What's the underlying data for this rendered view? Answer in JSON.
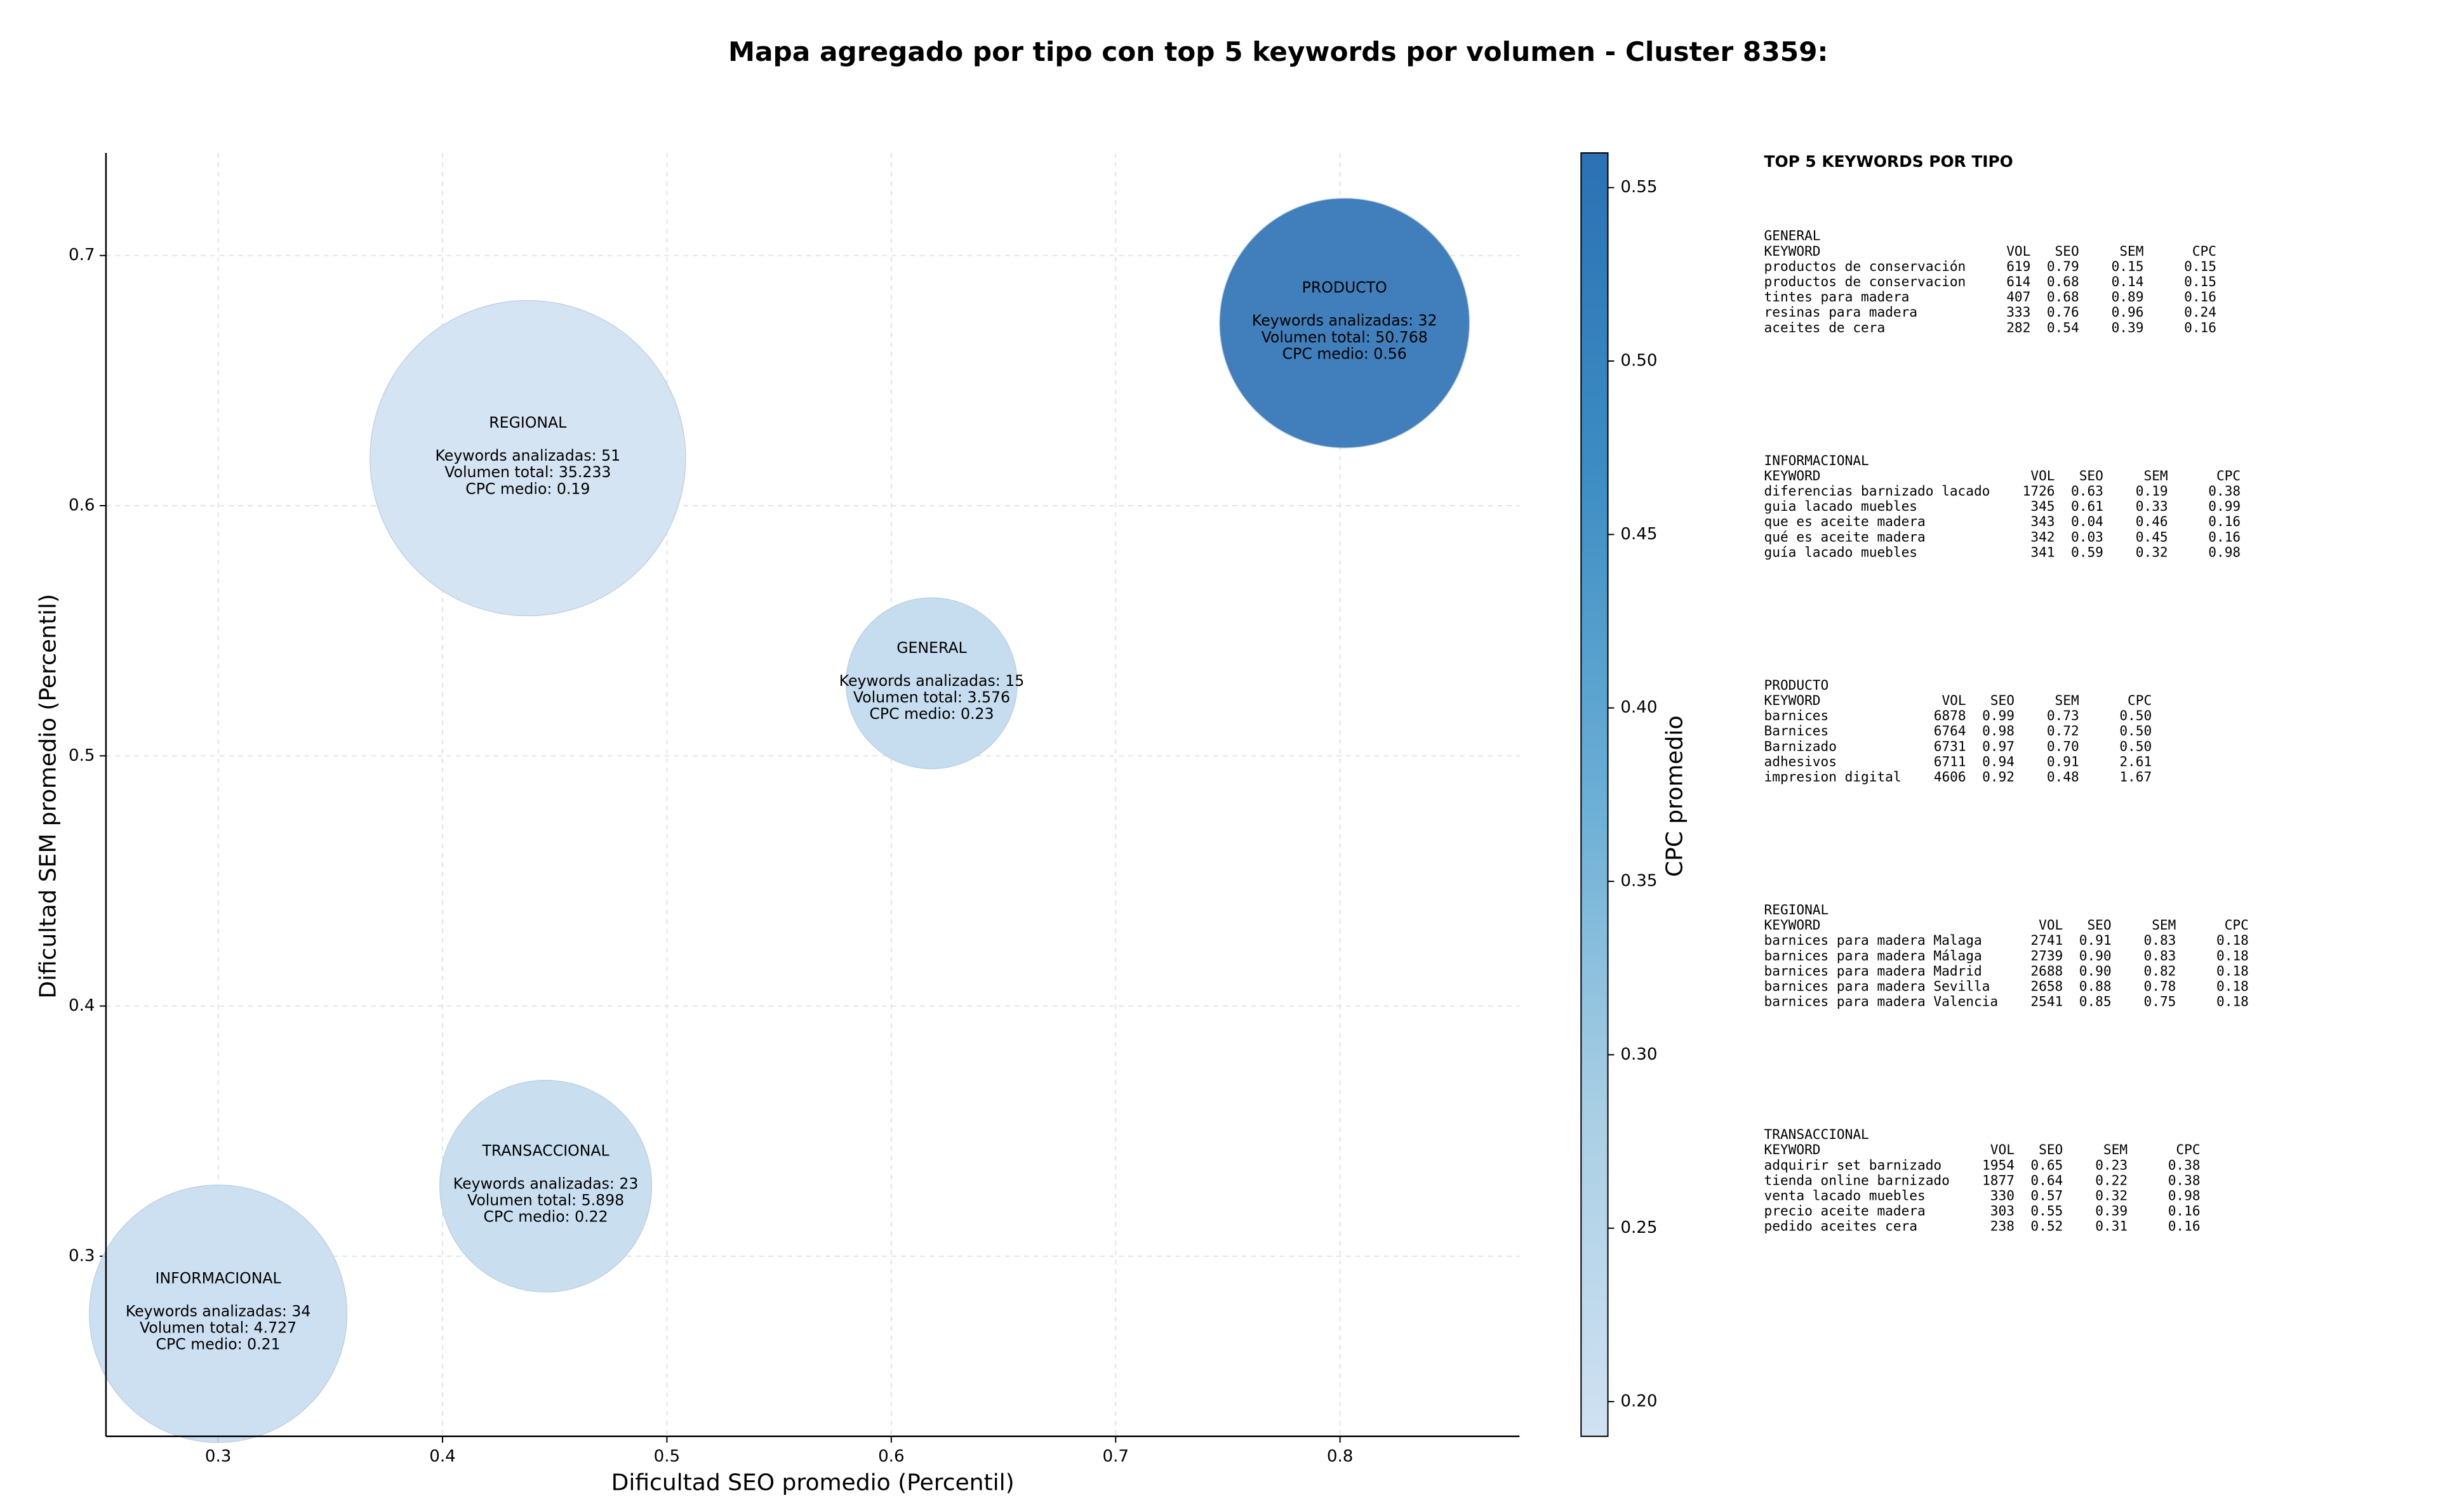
{
  "chart_data": {
    "type": "bubble",
    "title": "Mapa agregado por tipo con top 5 keywords por volumen - Cluster 8359:",
    "xlabel": "Dificultad SEO promedio (Percentil)",
    "ylabel": "Dificultad SEM promedio (Percentil)",
    "xlim": [
      0.25,
      0.88
    ],
    "ylim": [
      0.228,
      0.741
    ],
    "xticks": [
      0.3,
      0.4,
      0.5,
      0.6,
      0.7,
      0.8
    ],
    "yticks": [
      0.3,
      0.4,
      0.5,
      0.6,
      0.7
    ],
    "grid": true,
    "points": [
      {
        "name": "INFORMACIONAL",
        "x": 0.3,
        "y": 0.277,
        "keywords": 34,
        "cpc": 0.21,
        "annotation": [
          "Keywords analizadas: 34",
          "Volumen total: 4.727",
          "CPC medio: 0.21"
        ]
      },
      {
        "name": "TRANSACCIONAL",
        "x": 0.446,
        "y": 0.328,
        "keywords": 23,
        "cpc": 0.22,
        "annotation": [
          "Keywords analizadas: 23",
          "Volumen total: 5.898",
          "CPC medio: 0.22"
        ]
      },
      {
        "name": "GENERAL",
        "x": 0.618,
        "y": 0.529,
        "keywords": 15,
        "cpc": 0.23,
        "annotation": [
          "Keywords analizadas: 15",
          "Volumen total: 3.576",
          "CPC medio: 0.23"
        ]
      },
      {
        "name": "REGIONAL",
        "x": 0.438,
        "y": 0.619,
        "keywords": 51,
        "cpc": 0.19,
        "annotation": [
          "Keywords analizadas: 51",
          "Volumen total: 35.233",
          "CPC medio: 0.19"
        ]
      },
      {
        "name": "PRODUCTO",
        "x": 0.802,
        "y": 0.673,
        "keywords": 32,
        "cpc": 0.56,
        "annotation": [
          "Keywords analizadas: 32",
          "Volumen total: 50.768",
          "CPC medio: 0.56"
        ]
      }
    ],
    "colorbar": {
      "label": "CPC promedio",
      "clim": [
        0.19,
        0.56
      ],
      "ticks": [
        {
          "value": 0.2,
          "label": "0.20"
        },
        0.25,
        {
          "value": 0.3,
          "label": "0.30"
        },
        0.35,
        {
          "value": 0.4,
          "label": "0.40"
        },
        0.45,
        {
          "value": 0.5,
          "label": "0.50"
        },
        0.55
      ],
      "colormap": [
        "#d0e1f2",
        "#a9cfe5",
        "#6aaed6",
        "#3d8dc4",
        "#2b71b4"
      ]
    }
  },
  "panel": {
    "title": "TOP 5 KEYWORDS POR TIPO",
    "header": [
      "KEYWORD",
      "VOL",
      "SEO",
      "SEM",
      "CPC"
    ],
    "groups": [
      {
        "name": "GENERAL",
        "rows": [
          [
            "productos de conservación",
            "619",
            "0.79",
            "0.15",
            "0.15"
          ],
          [
            "productos de conservacion",
            "614",
            "0.68",
            "0.14",
            "0.15"
          ],
          [
            "tintes para madera",
            "407",
            "0.68",
            "0.89",
            "0.16"
          ],
          [
            "resinas para madera",
            "333",
            "0.76",
            "0.96",
            "0.24"
          ],
          [
            "aceites de cera",
            "282",
            "0.54",
            "0.39",
            "0.16"
          ]
        ]
      },
      {
        "name": "INFORMACIONAL",
        "rows": [
          [
            "diferencias barnizado lacado",
            "1726",
            "0.63",
            "0.19",
            "0.38"
          ],
          [
            "guia lacado muebles",
            "345",
            "0.61",
            "0.33",
            "0.99"
          ],
          [
            "que es aceite madera",
            "343",
            "0.04",
            "0.46",
            "0.16"
          ],
          [
            "qué es aceite madera",
            "342",
            "0.03",
            "0.45",
            "0.16"
          ],
          [
            "guía lacado muebles",
            "341",
            "0.59",
            "0.32",
            "0.98"
          ]
        ]
      },
      {
        "name": "PRODUCTO",
        "rows": [
          [
            "barnices",
            "6878",
            "0.99",
            "0.73",
            "0.50"
          ],
          [
            "Barnices",
            "6764",
            "0.98",
            "0.72",
            "0.50"
          ],
          [
            "Barnizado",
            "6731",
            "0.97",
            "0.70",
            "0.50"
          ],
          [
            "adhesivos",
            "6711",
            "0.94",
            "0.91",
            "2.61"
          ],
          [
            "impresion digital",
            "4606",
            "0.92",
            "0.48",
            "1.67"
          ]
        ]
      },
      {
        "name": "REGIONAL",
        "rows": [
          [
            "barnices para madera Malaga",
            "2741",
            "0.91",
            "0.83",
            "0.18"
          ],
          [
            "barnices para madera Málaga",
            "2739",
            "0.90",
            "0.83",
            "0.18"
          ],
          [
            "barnices para madera Madrid",
            "2688",
            "0.90",
            "0.82",
            "0.18"
          ],
          [
            "barnices para madera Sevilla",
            "2658",
            "0.88",
            "0.78",
            "0.18"
          ],
          [
            "barnices para madera Valencia",
            "2541",
            "0.85",
            "0.75",
            "0.18"
          ]
        ]
      },
      {
        "name": "TRANSACCIONAL",
        "rows": [
          [
            "adquirir set barnizado",
            "1954",
            "0.65",
            "0.23",
            "0.38"
          ],
          [
            "tienda online barnizado",
            "1877",
            "0.64",
            "0.22",
            "0.38"
          ],
          [
            "venta lacado muebles",
            "330",
            "0.57",
            "0.32",
            "0.98"
          ],
          [
            "precio aceite madera",
            "303",
            "0.55",
            "0.39",
            "0.16"
          ],
          [
            "pedido aceites cera",
            "238",
            "0.52",
            "0.31",
            "0.16"
          ]
        ]
      }
    ]
  }
}
